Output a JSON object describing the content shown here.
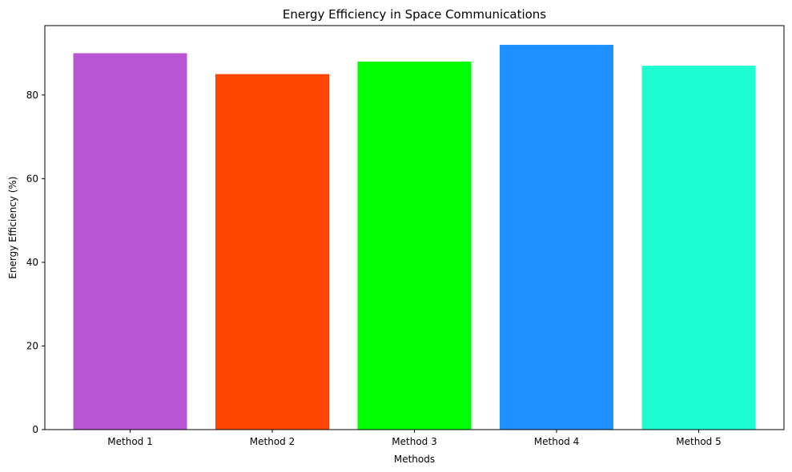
{
  "chart_data": {
    "type": "bar",
    "title": "Energy Efficiency in Space Communications",
    "xlabel": "Methods",
    "ylabel": "Energy Efficiency (%)",
    "categories": [
      "Method 1",
      "Method 2",
      "Method 3",
      "Method 4",
      "Method 5"
    ],
    "values": [
      90,
      85,
      88,
      92,
      87
    ],
    "colors": [
      "#BA55D3",
      "#FF4500",
      "#00FF00",
      "#1E90FF",
      "#1EFCD2"
    ],
    "ylim": [
      0,
      96.6
    ],
    "yticks": [
      0,
      20,
      40,
      60,
      80
    ],
    "grid": false,
    "legend": "none"
  }
}
